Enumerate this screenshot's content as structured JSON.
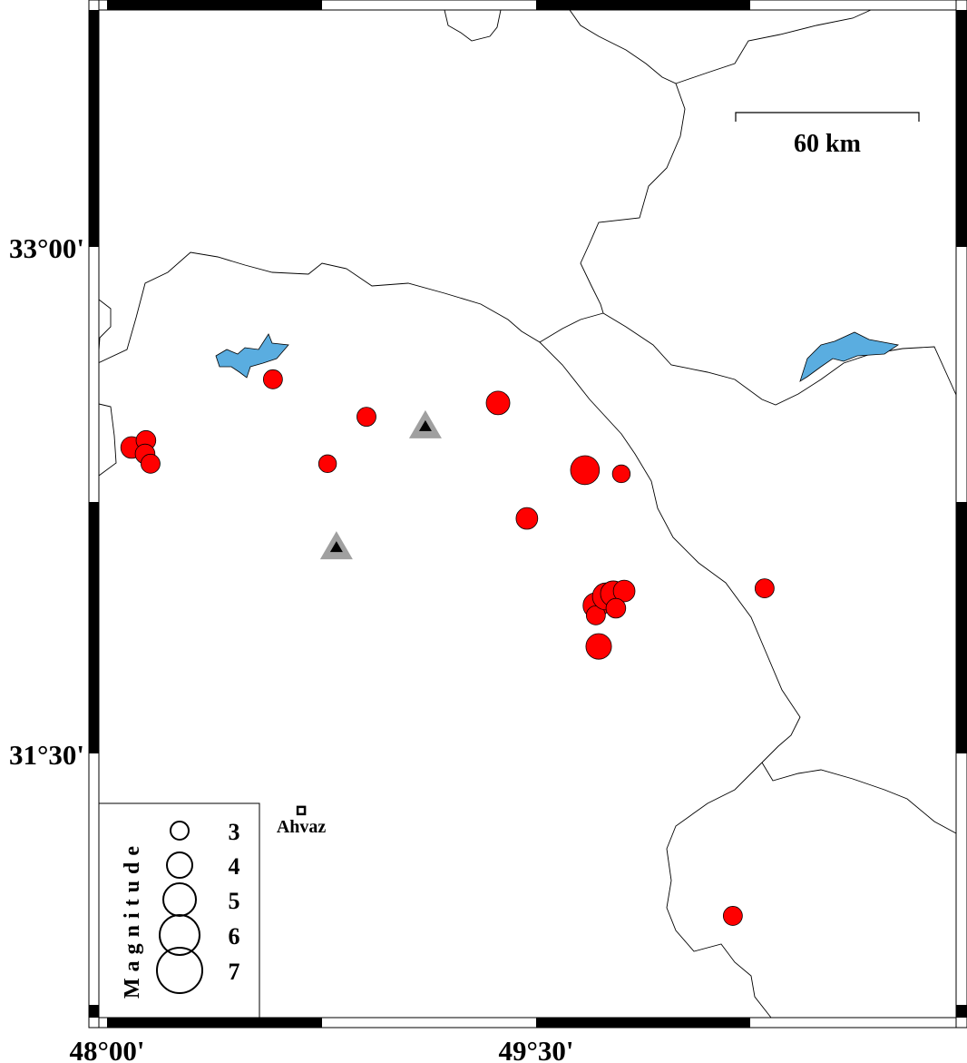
{
  "map": {
    "axes": {
      "lat_labels": [
        {
          "value": 33.0,
          "text": "33°00'"
        },
        {
          "value": 31.5,
          "text": "31°30'"
        }
      ],
      "lon_labels": [
        {
          "value": 48.0,
          "text": "48°00'"
        },
        {
          "value": 49.5,
          "text": "49°30'"
        }
      ]
    },
    "scale_bar": {
      "label": "60 km"
    },
    "colors": {
      "event_fill": "#ff0000",
      "lake_fill": "#5aade0",
      "station_outer": "#a0a0a0",
      "station_inner": "#000000",
      "border": "#000000"
    },
    "legend": {
      "title": "Magnitude",
      "entries": [
        {
          "mag": 3,
          "text": "3"
        },
        {
          "mag": 4,
          "text": "4"
        },
        {
          "mag": 5,
          "text": "5"
        },
        {
          "mag": 6,
          "text": "6"
        },
        {
          "mag": 7,
          "text": "7"
        }
      ]
    },
    "city": {
      "name": "Ahvaz",
      "lon": 48.679,
      "lat": 31.331
    },
    "stations": [
      {
        "lon": 49.113,
        "lat": 32.468
      },
      {
        "lon": 48.802,
        "lat": 32.11
      }
    ],
    "events": [
      {
        "lon": 48.58,
        "lat": 32.608,
        "mag": 3.0
      },
      {
        "lon": 48.907,
        "lat": 32.497,
        "mag": 3.0
      },
      {
        "lon": 48.771,
        "lat": 32.358,
        "mag": 2.8
      },
      {
        "lon": 49.367,
        "lat": 32.538,
        "mag": 3.7
      },
      {
        "lon": 49.671,
        "lat": 32.339,
        "mag": 4.5
      },
      {
        "lon": 49.798,
        "lat": 32.328,
        "mag": 2.8
      },
      {
        "lon": 49.468,
        "lat": 32.196,
        "mag": 3.4
      },
      {
        "lon": 50.299,
        "lat": 31.989,
        "mag": 3.0
      },
      {
        "lon": 50.188,
        "lat": 31.019,
        "mag": 3.0
      },
      {
        "lon": 48.086,
        "lat": 32.406,
        "mag": 3.4
      },
      {
        "lon": 48.136,
        "lat": 32.427,
        "mag": 3.1
      },
      {
        "lon": 48.133,
        "lat": 32.387,
        "mag": 3.1
      },
      {
        "lon": 48.152,
        "lat": 32.358,
        "mag": 3.0
      },
      {
        "lon": 49.709,
        "lat": 31.938,
        "mag": 4.0
      },
      {
        "lon": 49.709,
        "lat": 31.909,
        "mag": 3.0
      },
      {
        "lon": 49.744,
        "lat": 31.965,
        "mag": 4.2
      },
      {
        "lon": 49.77,
        "lat": 31.973,
        "mag": 4.0
      },
      {
        "lon": 49.808,
        "lat": 31.981,
        "mag": 3.4
      },
      {
        "lon": 49.779,
        "lat": 31.93,
        "mag": 3.1
      },
      {
        "lon": 49.719,
        "lat": 31.817,
        "mag": 4.0
      }
    ]
  }
}
